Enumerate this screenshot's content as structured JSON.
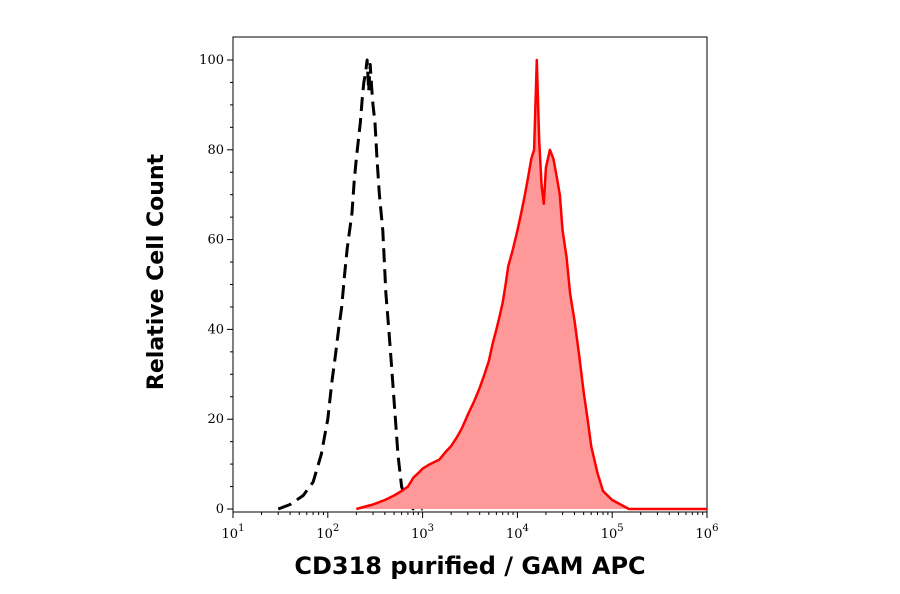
{
  "chart_data": {
    "type": "area",
    "title": "",
    "xlabel": "CD318 purified / GAM APC",
    "ylabel": "Relative Cell Count",
    "x_scale": "log",
    "xlim": [
      10,
      1000000
    ],
    "ylim": [
      0,
      100
    ],
    "x_ticks": [
      {
        "base": "10",
        "exp": "1",
        "value": 10
      },
      {
        "base": "10",
        "exp": "2",
        "value": 100
      },
      {
        "base": "10",
        "exp": "3",
        "value": 1000
      },
      {
        "base": "10",
        "exp": "4",
        "value": 10000
      },
      {
        "base": "10",
        "exp": "5",
        "value": 100000
      },
      {
        "base": "10",
        "exp": "6",
        "value": 1000000
      }
    ],
    "y_ticks": [
      "0",
      "20",
      "40",
      "60",
      "80",
      "100"
    ],
    "grid": false,
    "series": [
      {
        "style": "dashed",
        "color": "#000000",
        "fill": "none",
        "x": [
          30,
          40,
          55,
          70,
          85,
          100,
          110,
          120,
          130,
          140,
          150,
          160,
          170,
          180,
          190,
          200,
          210,
          220,
          230,
          240,
          250,
          260,
          270,
          280,
          290,
          300,
          315,
          330,
          350,
          380,
          410,
          440,
          470,
          500,
          550,
          600,
          700,
          800,
          1000
        ],
        "y": [
          0,
          1,
          3,
          6,
          12,
          20,
          28,
          34,
          40,
          45,
          52,
          58,
          62,
          66,
          73,
          78,
          82,
          86,
          91,
          95,
          97,
          100,
          93,
          99,
          94,
          90,
          86,
          78,
          70,
          62,
          48,
          40,
          32,
          24,
          12,
          5,
          1,
          0,
          0
        ]
      },
      {
        "style": "solid",
        "color": "#ff0000",
        "fill": "#ff9999",
        "x": [
          200,
          300,
          400,
          500,
          600,
          700,
          800,
          900,
          1000,
          1200,
          1500,
          1800,
          2000,
          2300,
          2600,
          3000,
          3500,
          4000,
          4500,
          5000,
          5500,
          6000,
          6500,
          7000,
          7500,
          8000,
          9000,
          10000,
          11000,
          12000,
          13000,
          14000,
          15000,
          16000,
          17000,
          18000,
          19000,
          20000,
          22000,
          24000,
          26000,
          28000,
          30000,
          33000,
          36000,
          40000,
          45000,
          50000,
          55000,
          60000,
          70000,
          80000,
          100000,
          150000,
          1000000
        ],
        "y": [
          0,
          1,
          2,
          3,
          4,
          5,
          7,
          8,
          9,
          10,
          11,
          13,
          14,
          16,
          18,
          21,
          24,
          27,
          30,
          33,
          37,
          40,
          43,
          46,
          50,
          54,
          58,
          62,
          66,
          70,
          74,
          78,
          80,
          100,
          82,
          72,
          68,
          76,
          80,
          78,
          74,
          70,
          62,
          56,
          48,
          42,
          34,
          26,
          20,
          14,
          8,
          4,
          2,
          0,
          0
        ]
      }
    ]
  }
}
